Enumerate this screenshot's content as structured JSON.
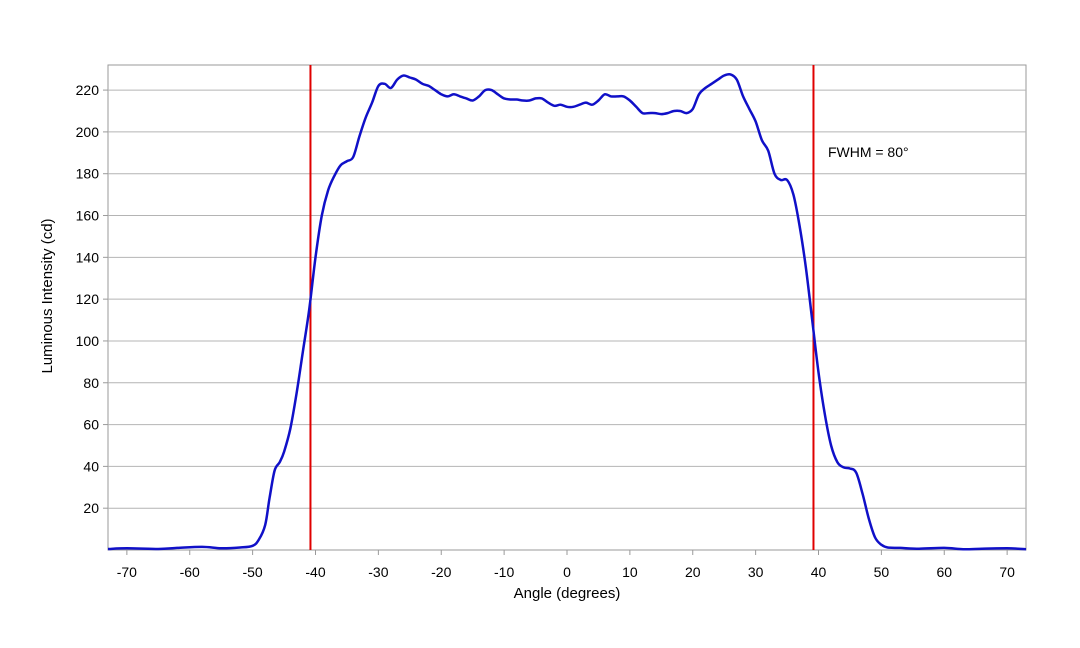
{
  "chart_data": {
    "type": "line",
    "xlabel": "Angle (degrees)",
    "ylabel": "Luminous Intensity (cd)",
    "xlim": [
      -73,
      73
    ],
    "ylim": [
      0,
      232
    ],
    "xticks": [
      -70,
      -60,
      -50,
      -40,
      -30,
      -20,
      -10,
      0,
      10,
      20,
      30,
      40,
      50,
      60,
      70
    ],
    "yticks": [
      20,
      40,
      60,
      80,
      100,
      120,
      140,
      160,
      180,
      200,
      220
    ],
    "grid": "horizontal",
    "annotation": {
      "text": "FWHM = 80°",
      "x": 41.5,
      "y": 188
    },
    "vlines": [
      {
        "x": -40.8,
        "color": "#e00000"
      },
      {
        "x": 39.2,
        "color": "#e00000"
      }
    ],
    "series": [
      {
        "color": "#1010c8",
        "points": [
          [
            -73,
            0.5
          ],
          [
            -70,
            0.8
          ],
          [
            -65,
            0.5
          ],
          [
            -62,
            1
          ],
          [
            -58,
            1.5
          ],
          [
            -55,
            0.8
          ],
          [
            -52,
            1.2
          ],
          [
            -50,
            2
          ],
          [
            -49,
            5
          ],
          [
            -48,
            12
          ],
          [
            -47.3,
            25
          ],
          [
            -46.5,
            38
          ],
          [
            -45.7,
            42
          ],
          [
            -45,
            47
          ],
          [
            -44,
            58
          ],
          [
            -43,
            75
          ],
          [
            -42,
            95
          ],
          [
            -41,
            115
          ],
          [
            -40,
            140
          ],
          [
            -39,
            160
          ],
          [
            -38,
            172
          ],
          [
            -37,
            179
          ],
          [
            -36,
            184
          ],
          [
            -35,
            186
          ],
          [
            -34,
            188
          ],
          [
            -33,
            198
          ],
          [
            -32,
            207
          ],
          [
            -31,
            214
          ],
          [
            -30,
            222
          ],
          [
            -29,
            223
          ],
          [
            -28,
            221
          ],
          [
            -27,
            225
          ],
          [
            -26,
            227
          ],
          [
            -25,
            226
          ],
          [
            -24,
            225
          ],
          [
            -23,
            223
          ],
          [
            -22,
            222
          ],
          [
            -21,
            220
          ],
          [
            -20,
            218
          ],
          [
            -19,
            217
          ],
          [
            -18,
            218
          ],
          [
            -17,
            217
          ],
          [
            -16,
            216
          ],
          [
            -15,
            215
          ],
          [
            -14,
            217
          ],
          [
            -13,
            220
          ],
          [
            -12,
            220
          ],
          [
            -11,
            218
          ],
          [
            -10,
            216
          ],
          [
            -9,
            215.5
          ],
          [
            -8,
            215.5
          ],
          [
            -7,
            215
          ],
          [
            -6,
            215
          ],
          [
            -5,
            216
          ],
          [
            -4,
            216
          ],
          [
            -3,
            214
          ],
          [
            -2,
            212.5
          ],
          [
            -1,
            213
          ],
          [
            0,
            212
          ],
          [
            1,
            212
          ],
          [
            2,
            213
          ],
          [
            3,
            214
          ],
          [
            4,
            213
          ],
          [
            5,
            215
          ],
          [
            6,
            218
          ],
          [
            7,
            217
          ],
          [
            8,
            217
          ],
          [
            9,
            217
          ],
          [
            10,
            215
          ],
          [
            11,
            212
          ],
          [
            12,
            209
          ],
          [
            13,
            209
          ],
          [
            14,
            209
          ],
          [
            15,
            208.5
          ],
          [
            16,
            209
          ],
          [
            17,
            210
          ],
          [
            18,
            210
          ],
          [
            19,
            209
          ],
          [
            20,
            211
          ],
          [
            21,
            218
          ],
          [
            22,
            221
          ],
          [
            23,
            223
          ],
          [
            24,
            225
          ],
          [
            25,
            227
          ],
          [
            26,
            227.5
          ],
          [
            27,
            225
          ],
          [
            28,
            217
          ],
          [
            29,
            211
          ],
          [
            30,
            205
          ],
          [
            31,
            196
          ],
          [
            32,
            191
          ],
          [
            33,
            180
          ],
          [
            34,
            177
          ],
          [
            35,
            177
          ],
          [
            36,
            170
          ],
          [
            37,
            155
          ],
          [
            38,
            135
          ],
          [
            39,
            110
          ],
          [
            40,
            85
          ],
          [
            41,
            65
          ],
          [
            42,
            50
          ],
          [
            43,
            42
          ],
          [
            44,
            39.5
          ],
          [
            45,
            39
          ],
          [
            46,
            37
          ],
          [
            47,
            27
          ],
          [
            48,
            15
          ],
          [
            49,
            6
          ],
          [
            50,
            2.5
          ],
          [
            51,
            1.2
          ],
          [
            53,
            1
          ],
          [
            56,
            0.6
          ],
          [
            60,
            1
          ],
          [
            63,
            0.4
          ],
          [
            66,
            0.6
          ],
          [
            70,
            0.8
          ],
          [
            73,
            0.4
          ]
        ]
      }
    ]
  }
}
